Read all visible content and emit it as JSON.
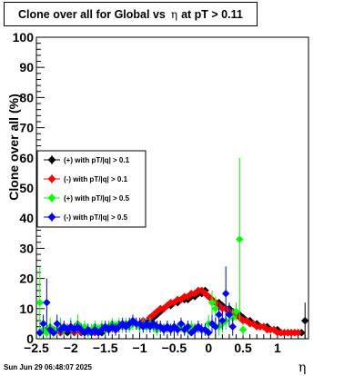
{
  "title": {
    "prefix": "Clone  over all for Global vs",
    "eta": "η",
    "suffix": "at pT > 0.11"
  },
  "footer": {
    "timestamp": "Sun Jun 29 06:48:07 2025"
  },
  "chart_data": {
    "type": "scatter",
    "title": "Clone  over all for Global vs η at pT > 0.11",
    "xlabel": "η",
    "ylabel": "Clone  over all (%)",
    "xlim": [
      -2.5,
      1.45
    ],
    "ylim": [
      0,
      100
    ],
    "xticks": [
      -2.5,
      -2,
      -1.5,
      -1,
      -0.5,
      0,
      0.5,
      1
    ],
    "xtick_labels": [
      "−2.5",
      "−2",
      "−1.5",
      "−1",
      "−0.5",
      "0",
      "0.5",
      "1"
    ],
    "yticks": [
      0,
      10,
      20,
      30,
      40,
      50,
      60,
      70,
      80,
      90,
      100
    ],
    "ytick_labels": [
      "0",
      "10",
      "20",
      "30",
      "40",
      "50",
      "60",
      "70",
      "80",
      "90",
      "100"
    ],
    "grid": false,
    "legend_position": "left-middle",
    "series": [
      {
        "name": "(+) with pT/|q| > 0.1",
        "color": "#000000",
        "x": [
          -2.45,
          -2.35,
          -2.25,
          -2.15,
          -2.05,
          -1.95,
          -1.85,
          -1.75,
          -1.65,
          -1.55,
          -1.45,
          -1.35,
          -1.25,
          -1.15,
          -1.05,
          -0.95,
          -0.85,
          -0.8,
          -0.75,
          -0.7,
          -0.65,
          -0.6,
          -0.55,
          -0.5,
          -0.45,
          -0.4,
          -0.35,
          -0.3,
          -0.25,
          -0.2,
          -0.15,
          -0.1,
          -0.05,
          0.0,
          0.05,
          0.1,
          0.15,
          0.2,
          0.25,
          0.3,
          0.35,
          0.4,
          0.45,
          0.5,
          0.55,
          0.6,
          0.65,
          0.7,
          0.75,
          0.8,
          0.85,
          0.9,
          0.95,
          1.0,
          1.05,
          1.1,
          1.15,
          1.2,
          1.25,
          1.3,
          1.35,
          1.4
        ],
        "y": [
          2,
          3,
          2,
          3,
          2,
          3,
          2,
          2,
          3,
          2,
          3,
          3,
          4,
          4,
          5,
          5,
          6,
          7,
          8,
          9,
          10,
          11,
          11,
          12,
          12,
          13,
          13,
          13,
          14,
          14,
          15,
          15,
          16,
          14,
          13,
          12,
          12,
          11,
          10,
          10,
          9,
          8,
          8,
          7,
          6,
          6,
          5,
          5,
          4,
          4,
          4,
          3,
          3,
          3,
          2,
          2,
          2,
          2,
          2,
          2,
          2,
          6
        ],
        "yerr": [
          1,
          1,
          1,
          1,
          1,
          1,
          1,
          1,
          1,
          1,
          1,
          1,
          1,
          1,
          1,
          1,
          1,
          1,
          1,
          1,
          1,
          1,
          1,
          1,
          1,
          1,
          1,
          1,
          1,
          1,
          1,
          1,
          1,
          1,
          1,
          1,
          1,
          1,
          1,
          1,
          1,
          1,
          1,
          1,
          1,
          1,
          1,
          1,
          1,
          1,
          1,
          1,
          1,
          1,
          1,
          1,
          1,
          1,
          1,
          1,
          1,
          6
        ]
      },
      {
        "name": "(-) with pT/|q| > 0.1",
        "color": "#ff0000",
        "x": [
          -2.45,
          -2.35,
          -2.25,
          -2.15,
          -2.05,
          -1.95,
          -1.85,
          -1.75,
          -1.65,
          -1.55,
          -1.45,
          -1.35,
          -1.25,
          -1.15,
          -1.05,
          -0.95,
          -0.85,
          -0.8,
          -0.75,
          -0.7,
          -0.65,
          -0.6,
          -0.55,
          -0.5,
          -0.45,
          -0.4,
          -0.35,
          -0.3,
          -0.25,
          -0.2,
          -0.15,
          -0.1,
          -0.05,
          0.0,
          0.05,
          0.1,
          0.15,
          0.2,
          0.25,
          0.3,
          0.35,
          0.4,
          0.45,
          0.5,
          0.55,
          0.6,
          0.65,
          0.7,
          0.75,
          0.8,
          0.85,
          0.9,
          0.95,
          1.0,
          1.05,
          1.1,
          1.15,
          1.2,
          1.25,
          1.3
        ],
        "y": [
          2,
          2,
          3,
          2,
          3,
          2,
          2,
          3,
          2,
          3,
          3,
          4,
          4,
          5,
          5,
          6,
          7,
          8,
          9,
          10,
          10,
          11,
          12,
          12,
          13,
          13,
          14,
          14,
          15,
          15,
          16,
          16,
          15,
          14,
          13,
          12,
          11,
          10,
          10,
          9,
          8,
          8,
          7,
          6,
          6,
          5,
          5,
          4,
          4,
          4,
          3,
          3,
          3,
          2,
          2,
          2,
          2,
          2,
          2,
          2
        ],
        "yerr": [
          1,
          1,
          1,
          1,
          1,
          1,
          1,
          1,
          1,
          1,
          1,
          1,
          1,
          1,
          1,
          1,
          1,
          1,
          1,
          1,
          1,
          1,
          1,
          1,
          1,
          1,
          1,
          1,
          1,
          1,
          1,
          1,
          1,
          1,
          1,
          1,
          1,
          1,
          1,
          1,
          1,
          1,
          1,
          1,
          1,
          1,
          1,
          1,
          1,
          1,
          1,
          1,
          1,
          1,
          1,
          1,
          1,
          1,
          1,
          1
        ]
      },
      {
        "name": "(+) with pT/|q| > 0.5",
        "color": "#00ff00",
        "x": [
          -2.45,
          -2.4,
          -2.35,
          -2.3,
          -2.25,
          -2.2,
          -2.15,
          -2.1,
          -2.05,
          -2.0,
          -1.95,
          -1.9,
          -1.85,
          -1.8,
          -1.75,
          -1.7,
          -1.65,
          -1.6,
          -1.55,
          -1.5,
          -1.45,
          -1.4,
          -1.35,
          -1.3,
          -1.25,
          -1.2,
          -1.15,
          -1.1,
          -1.05,
          -1.0,
          -0.95,
          -0.9,
          -0.85,
          -0.8,
          -0.75,
          -0.7,
          -0.65,
          -0.6,
          -0.55,
          -0.5,
          -0.45,
          -0.4,
          -0.35,
          -0.3,
          -0.25,
          -0.2,
          -0.15,
          -0.1,
          -0.05,
          0.0,
          0.05,
          0.1,
          0.15,
          0.2,
          0.25,
          0.3,
          0.35,
          0.4,
          0.45,
          0.5
        ],
        "y": [
          12,
          3,
          2,
          4,
          2,
          3,
          4,
          3,
          3,
          4,
          3,
          5,
          3,
          4,
          2,
          3,
          4,
          3,
          4,
          3,
          4,
          5,
          4,
          5,
          4,
          5,
          4,
          5,
          5,
          4,
          5,
          4,
          5,
          4,
          3,
          4,
          3,
          4,
          3,
          4,
          3,
          4,
          3,
          3,
          4,
          3,
          4,
          3,
          3,
          5,
          12,
          10,
          4,
          5,
          6,
          8,
          7,
          9,
          33,
          3
        ],
        "yerr": [
          12,
          2,
          2,
          3,
          2,
          2,
          3,
          2,
          2,
          3,
          2,
          3,
          2,
          2,
          2,
          2,
          2,
          2,
          2,
          2,
          2,
          2,
          2,
          2,
          2,
          2,
          2,
          2,
          2,
          2,
          2,
          2,
          2,
          2,
          2,
          2,
          2,
          2,
          2,
          2,
          2,
          2,
          2,
          2,
          2,
          2,
          2,
          2,
          2,
          3,
          4,
          4,
          3,
          3,
          3,
          3,
          3,
          3,
          27,
          2
        ]
      },
      {
        "name": "(-) with pT/|q| > 0.5",
        "color": "#0000ff",
        "x": [
          -2.45,
          -2.4,
          -2.35,
          -2.3,
          -2.25,
          -2.2,
          -2.15,
          -2.1,
          -2.05,
          -2.0,
          -1.95,
          -1.9,
          -1.85,
          -1.8,
          -1.75,
          -1.7,
          -1.65,
          -1.6,
          -1.55,
          -1.5,
          -1.45,
          -1.4,
          -1.35,
          -1.3,
          -1.25,
          -1.2,
          -1.15,
          -1.1,
          -1.05,
          -1.0,
          -0.95,
          -0.9,
          -0.85,
          -0.8,
          -0.75,
          -0.7,
          -0.65,
          -0.6,
          -0.55,
          -0.5,
          -0.45,
          -0.4,
          -0.35,
          -0.3,
          -0.25,
          -0.2,
          -0.15,
          -0.1,
          -0.05,
          0.0,
          0.05,
          0.1,
          0.15,
          0.2,
          0.25,
          0.3,
          0.35
        ],
        "y": [
          2,
          5,
          12,
          3,
          2,
          5,
          3,
          4,
          3,
          4,
          3,
          4,
          3,
          2,
          3,
          2,
          3,
          2,
          3,
          4,
          3,
          4,
          3,
          4,
          5,
          4,
          5,
          6,
          5,
          5,
          4,
          5,
          4,
          5,
          4,
          4,
          3,
          4,
          3,
          4,
          3,
          5,
          3,
          4,
          2,
          3,
          4,
          3,
          3,
          2,
          5,
          4,
          8,
          6,
          15,
          8,
          4
        ],
        "yerr": [
          1,
          3,
          8,
          2,
          1,
          3,
          2,
          2,
          2,
          2,
          2,
          2,
          2,
          1,
          2,
          1,
          2,
          1,
          2,
          2,
          2,
          2,
          2,
          2,
          2,
          2,
          2,
          2,
          2,
          2,
          2,
          2,
          2,
          2,
          2,
          2,
          2,
          2,
          2,
          2,
          2,
          2,
          2,
          2,
          1,
          2,
          2,
          2,
          2,
          1,
          3,
          3,
          4,
          3,
          9,
          4,
          3
        ]
      }
    ]
  }
}
